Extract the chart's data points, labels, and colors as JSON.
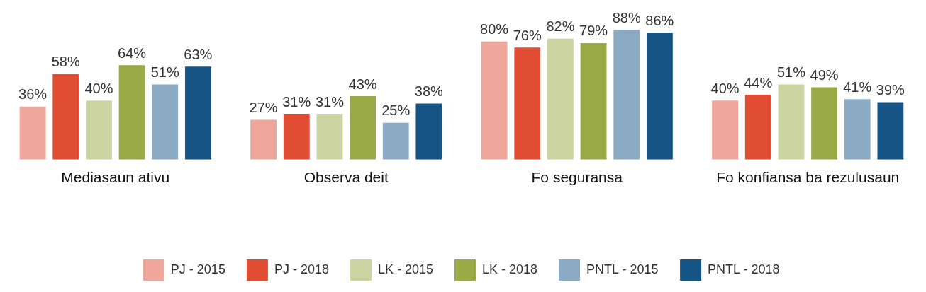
{
  "chart_data": {
    "type": "bar",
    "categories": [
      "Mediasaun ativu",
      "Observa deit",
      "Fo seguransa",
      "Fo konfiansa ba rezulusaun"
    ],
    "series": [
      {
        "name": "PJ - 2015",
        "color": "#efa69b",
        "values": [
          36,
          27,
          80,
          40
        ],
        "value_labels": [
          "36%",
          "27%",
          "80%",
          "40%"
        ]
      },
      {
        "name": "PJ - 2018",
        "color": "#e14d33",
        "values": [
          58,
          31,
          76,
          44
        ],
        "value_labels": [
          "58%",
          "31%",
          "76%",
          "44%"
        ]
      },
      {
        "name": "LK - 2015",
        "color": "#ccd4a2",
        "values": [
          40,
          31,
          82,
          51
        ],
        "value_labels": [
          "40%",
          "31%",
          "82%",
          "51%"
        ]
      },
      {
        "name": "LK - 2018",
        "color": "#9aaa46",
        "values": [
          64,
          43,
          79,
          49
        ],
        "value_labels": [
          "64%",
          "43%",
          "79%",
          "49%"
        ]
      },
      {
        "name": "PNTL - 2015",
        "color": "#8baac4",
        "values": [
          51,
          25,
          88,
          41
        ],
        "value_labels": [
          "51%",
          "25%",
          "88%",
          "41%"
        ]
      },
      {
        "name": "PNTL - 2018",
        "color": "#165486",
        "values": [
          63,
          38,
          86,
          39
        ],
        "value_labels": [
          "63%",
          "38%",
          "86%",
          "39%"
        ]
      }
    ],
    "legend": "bottom",
    "grid": false
  }
}
